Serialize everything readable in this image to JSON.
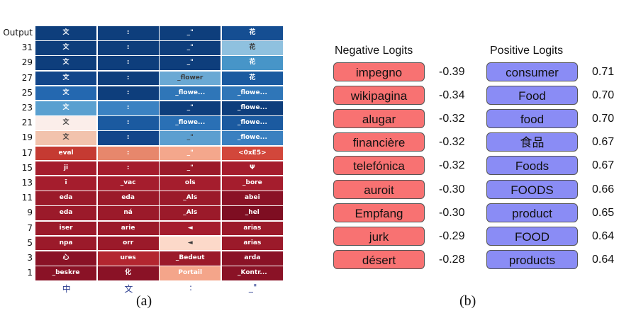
{
  "heatmap": {
    "rows": [
      "Output",
      "31",
      "29",
      "27",
      "25",
      "23",
      "21",
      "19",
      "17",
      "15",
      "13",
      "11",
      "9",
      "7",
      "5",
      "3",
      "1"
    ],
    "columns": [
      "中",
      "文",
      ":",
      "_\""
    ],
    "cells": [
      [
        {
          "t": "文",
          "c": "#0e3e7c",
          "d": true
        },
        {
          "t": ":",
          "c": "#0e3e7c",
          "d": true
        },
        {
          "t": "_\"",
          "c": "#0e3e7c",
          "d": true
        },
        {
          "t": "花",
          "c": "#154e92",
          "d": true
        }
      ],
      [
        {
          "t": "文",
          "c": "#0e3e7c",
          "d": true
        },
        {
          "t": ":",
          "c": "#0e3e7c",
          "d": true
        },
        {
          "t": "_\"",
          "c": "#0e3e7c",
          "d": true
        },
        {
          "t": "花",
          "c": "#8fc1df",
          "d": false
        }
      ],
      [
        {
          "t": "文",
          "c": "#0e3e7c",
          "d": true
        },
        {
          "t": ":",
          "c": "#0e3e7c",
          "d": true
        },
        {
          "t": "_\"",
          "c": "#0e3e7c",
          "d": true
        },
        {
          "t": "花",
          "c": "#4795c8",
          "d": true
        }
      ],
      [
        {
          "t": "文",
          "c": "#12468a",
          "d": true
        },
        {
          "t": ":",
          "c": "#0e3e7c",
          "d": true
        },
        {
          "t": "_flower",
          "c": "#6aa9d4",
          "d": false
        },
        {
          "t": "花",
          "c": "#1a5aa0",
          "d": true
        }
      ],
      [
        {
          "t": "文",
          "c": "#2468b0",
          "d": true
        },
        {
          "t": ":",
          "c": "#0e3e7c",
          "d": true
        },
        {
          "t": "_flowe...",
          "c": "#2f76b8",
          "d": true
        },
        {
          "t": "_flowe...",
          "c": "#2f76b8",
          "d": true
        }
      ],
      [
        {
          "t": "文",
          "c": "#5aa0d0",
          "d": true
        },
        {
          "t": ":",
          "c": "#3b82c2",
          "d": true
        },
        {
          "t": "_\"",
          "c": "#0e3e7c",
          "d": true
        },
        {
          "t": "_flowe...",
          "c": "#0e3e7c",
          "d": true
        }
      ],
      [
        {
          "t": "文",
          "c": "#fbeeea",
          "d": false
        },
        {
          "t": ":",
          "c": "#1b5aa0",
          "d": true
        },
        {
          "t": "_flowe...",
          "c": "#2a70b5",
          "d": true
        },
        {
          "t": "_flowe...",
          "c": "#1b5aa0",
          "d": true
        }
      ],
      [
        {
          "t": "文",
          "c": "#f2c3ad",
          "d": false
        },
        {
          "t": ":",
          "c": "#12468a",
          "d": true
        },
        {
          "t": "_\"",
          "c": "#5c9fd0",
          "d": false
        },
        {
          "t": "_flowe...",
          "c": "#3a80c0",
          "d": true
        }
      ],
      [
        {
          "t": "eval",
          "c": "#c53a32",
          "d": true
        },
        {
          "t": ":",
          "c": "#e7876c",
          "d": true
        },
        {
          "t": "_\"",
          "c": "#f4a78c",
          "d": true
        },
        {
          "t": "<0xE5>",
          "c": "#d2473b",
          "d": true
        }
      ],
      [
        {
          "t": "ji",
          "c": "#a51d2d",
          "d": true
        },
        {
          "t": ":",
          "c": "#a51d2d",
          "d": true
        },
        {
          "t": "_\"",
          "c": "#9b1a2a",
          "d": true
        },
        {
          "t": "Ψ",
          "c": "#a51d2d",
          "d": true
        }
      ],
      [
        {
          "t": "ī",
          "c": "#a51d2d",
          "d": true
        },
        {
          "t": "_vac",
          "c": "#a51d2d",
          "d": true
        },
        {
          "t": "ols",
          "c": "#a51d2d",
          "d": true
        },
        {
          "t": "_bore",
          "c": "#a51d2d",
          "d": true
        }
      ],
      [
        {
          "t": "eda",
          "c": "#9b1a2a",
          "d": true
        },
        {
          "t": "eda",
          "c": "#9b1a2a",
          "d": true
        },
        {
          "t": "_Als",
          "c": "#9b1a2a",
          "d": true
        },
        {
          "t": "abei",
          "c": "#8a1226",
          "d": true
        }
      ],
      [
        {
          "t": "eda",
          "c": "#9b1a2a",
          "d": true
        },
        {
          "t": "ná",
          "c": "#9b1a2a",
          "d": true
        },
        {
          "t": "_Als",
          "c": "#9b1a2a",
          "d": true
        },
        {
          "t": "_hel",
          "c": "#7e0e22",
          "d": true
        }
      ],
      [
        {
          "t": "iser",
          "c": "#9b1a2a",
          "d": true
        },
        {
          "t": "arie",
          "c": "#9b1a2a",
          "d": true
        },
        {
          "t": "◄",
          "c": "#a51d2d",
          "d": true
        },
        {
          "t": "arias",
          "c": "#9b1a2a",
          "d": true
        }
      ],
      [
        {
          "t": "npa",
          "c": "#9b1a2a",
          "d": true
        },
        {
          "t": "orr",
          "c": "#9b1a2a",
          "d": true
        },
        {
          "t": "◄",
          "c": "#fcd9c9",
          "d": false
        },
        {
          "t": "arias",
          "c": "#9b1a2a",
          "d": true
        }
      ],
      [
        {
          "t": "心",
          "c": "#8a1226",
          "d": true
        },
        {
          "t": "ures",
          "c": "#b32630",
          "d": true
        },
        {
          "t": "_Bedeut",
          "c": "#9b1a2a",
          "d": true
        },
        {
          "t": "arda",
          "c": "#8a1226",
          "d": true
        }
      ],
      [
        {
          "t": "_beskre",
          "c": "#8a1226",
          "d": true
        },
        {
          "t": "化",
          "c": "#8a1226",
          "d": true
        },
        {
          "t": "Portail",
          "c": "#f4a58a",
          "d": true
        },
        {
          "t": "_Kontr...",
          "c": "#8a1226",
          "d": true
        }
      ]
    ]
  },
  "caption_a": "(a)",
  "caption_b": "(b)",
  "negative": {
    "title": "Negative Logits",
    "items": [
      {
        "token": "impegno",
        "score": "-0.39"
      },
      {
        "token": "wikipagina",
        "score": "-0.34"
      },
      {
        "token": "alugar",
        "score": "-0.32"
      },
      {
        "token": "financière",
        "score": "-0.32"
      },
      {
        "token": "telefónica",
        "score": "-0.32"
      },
      {
        "token": "auroit",
        "score": "-0.30"
      },
      {
        "token": "Empfang",
        "score": "-0.30"
      },
      {
        "token": "jurk",
        "score": "-0.29"
      },
      {
        "token": "désert",
        "score": "-0.28"
      }
    ]
  },
  "positive": {
    "title": "Positive Logits",
    "items": [
      {
        "token": "consumer",
        "score": "0.71"
      },
      {
        "token": "Food",
        "score": "0.70"
      },
      {
        "token": "food",
        "score": "0.70"
      },
      {
        "token": "食品",
        "score": "0.67"
      },
      {
        "token": "Foods",
        "score": "0.67"
      },
      {
        "token": "FOODS",
        "score": "0.66"
      },
      {
        "token": "product",
        "score": "0.65"
      },
      {
        "token": "FOOD",
        "score": "0.64"
      },
      {
        "token": "products",
        "score": "0.64"
      }
    ]
  }
}
